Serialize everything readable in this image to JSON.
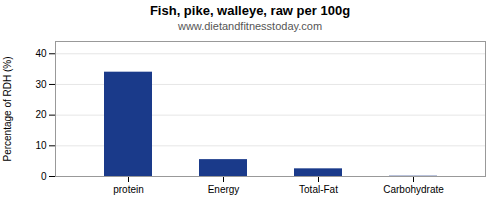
{
  "chart_data": {
    "type": "bar",
    "title": "Fish, pike, walleye, raw per 100g",
    "subtitle": "www.dietandfitnesstoday.com",
    "categories": [
      "protein",
      "Energy",
      "Total-Fat",
      "Carbohydrate"
    ],
    "values": [
      34,
      5.5,
      2.5,
      0.1
    ],
    "color": "#1a3a8a",
    "ylabel": "Percentage of RDH (%)",
    "ylim": [
      0,
      44
    ],
    "yticks": [
      0,
      10,
      20,
      30,
      40
    ],
    "grid": true
  }
}
